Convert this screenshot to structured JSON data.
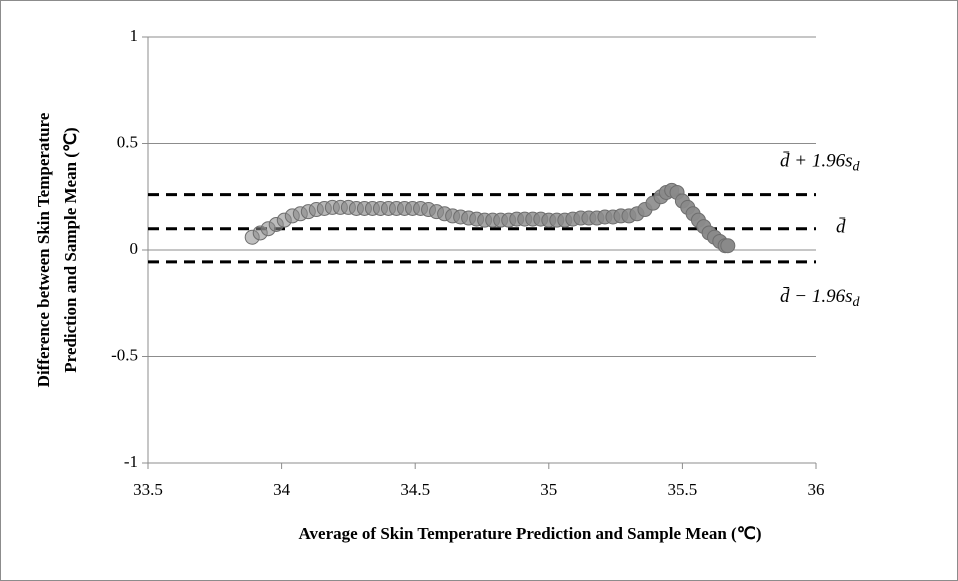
{
  "chart_data": {
    "type": "scatter",
    "xlabel": "Average  of Skin Temperature  Prediction  and  Sample  Mean  (℃)",
    "ylabel": [
      "Difference between  Skin Temperature",
      "Prediction  and Sample  Mean (℃)"
    ],
    "xlim": [
      33.5,
      36
    ],
    "xticks": [
      33.5,
      34,
      34.5,
      35,
      35.5,
      36
    ],
    "ylim": [
      -1,
      1
    ],
    "yticks": [
      -1,
      -0.5,
      0,
      0.5,
      1
    ],
    "grid": true,
    "series": [
      {
        "color": "#8a8a8a",
        "x": [
          33.89,
          33.92,
          33.95,
          33.98,
          34.01,
          34.04,
          34.07,
          34.1,
          34.13,
          34.16,
          34.19,
          34.22,
          34.25,
          34.28,
          34.31,
          34.34,
          34.37,
          34.4,
          34.43,
          34.46,
          34.49,
          34.52,
          34.55,
          34.58,
          34.61,
          34.64,
          34.67,
          34.7,
          34.73,
          34.76,
          34.79,
          34.82,
          34.85,
          34.88,
          34.91,
          34.94,
          34.97,
          35.0,
          35.03,
          35.06,
          35.09,
          35.12,
          35.15,
          35.18,
          35.21,
          35.24,
          35.27,
          35.3,
          35.33,
          35.36,
          35.39,
          35.42,
          35.44,
          35.46,
          35.48,
          35.5,
          35.52,
          35.54,
          35.56,
          35.58,
          35.6,
          35.62,
          35.64,
          35.66,
          35.67
        ],
        "values": [
          0.06,
          0.08,
          0.1,
          0.12,
          0.14,
          0.16,
          0.17,
          0.18,
          0.19,
          0.195,
          0.2,
          0.2,
          0.2,
          0.195,
          0.195,
          0.195,
          0.195,
          0.195,
          0.195,
          0.195,
          0.195,
          0.195,
          0.19,
          0.18,
          0.17,
          0.16,
          0.155,
          0.15,
          0.145,
          0.14,
          0.14,
          0.14,
          0.14,
          0.145,
          0.145,
          0.145,
          0.145,
          0.14,
          0.14,
          0.14,
          0.145,
          0.15,
          0.15,
          0.15,
          0.155,
          0.155,
          0.16,
          0.16,
          0.17,
          0.19,
          0.22,
          0.25,
          0.27,
          0.28,
          0.27,
          0.23,
          0.2,
          0.17,
          0.14,
          0.11,
          0.08,
          0.06,
          0.04,
          0.02,
          0.02
        ]
      }
    ],
    "reference_lines": [
      {
        "value": 0.26,
        "main": "d̄ + 1.96s",
        "sub": "d",
        "position": "above"
      },
      {
        "value": 0.1,
        "main": "d̄",
        "position": "center"
      },
      {
        "value": -0.056,
        "main": "d̄ − 1.96s",
        "sub": "d",
        "position": "below"
      }
    ]
  }
}
